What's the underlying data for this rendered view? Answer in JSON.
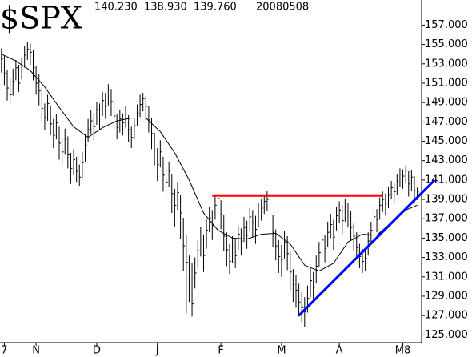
{
  "chart_data": {
    "type": "ohlc",
    "header": {
      "symbol": "$SPX",
      "high": "140.230",
      "low": "138.930",
      "close": "139.760",
      "date": "20080508"
    },
    "color": "#000000",
    "xlim": [
      -0.5,
      145.5
    ],
    "xticks": [
      {
        "value": 1,
        "label": "7"
      },
      {
        "value": 12,
        "label": "N"
      },
      {
        "value": 33,
        "label": "D"
      },
      {
        "value": 54,
        "label": "J"
      },
      {
        "value": 76,
        "label": "F"
      },
      {
        "value": 97,
        "label": "M"
      },
      {
        "value": 117,
        "label": "A"
      },
      {
        "value": 139,
        "label": "M8"
      }
    ],
    "ylim": [
      124.2,
      159.6
    ],
    "yticks": [
      {
        "value": 125,
        "label": "125.000"
      },
      {
        "value": 127,
        "label": "127.000"
      },
      {
        "value": 129,
        "label": "129.000"
      },
      {
        "value": 131,
        "label": "131.000"
      },
      {
        "value": 133,
        "label": "133.000"
      },
      {
        "value": 135,
        "label": "135.000"
      },
      {
        "value": 137,
        "label": "137.000"
      },
      {
        "value": 139,
        "label": "139.000"
      },
      {
        "value": 141,
        "label": "141.000"
      },
      {
        "value": 143,
        "label": "143.000"
      },
      {
        "value": 145,
        "label": "145.000"
      },
      {
        "value": 147,
        "label": "147.000"
      },
      {
        "value": 149,
        "label": "149.000"
      },
      {
        "value": 151,
        "label": "151.000"
      },
      {
        "value": 153,
        "label": "153.000"
      },
      {
        "value": 155,
        "label": "155.000"
      },
      {
        "value": 157,
        "label": "157.000"
      }
    ],
    "high": [
      154.6,
      153.8,
      152.4,
      151.6,
      152.5,
      153.4,
      152.9,
      153.6,
      154.8,
      155.3,
      155.1,
      154.4,
      152.8,
      151.9,
      150.6,
      148.9,
      149.8,
      148.7,
      147.3,
      147.8,
      146.5,
      145.4,
      146.3,
      145.5,
      143.8,
      144.2,
      143.4,
      142.6,
      143.9,
      145.8,
      147.3,
      148.2,
      147.9,
      149.1,
      148.9,
      150.1,
      150.0,
      150.9,
      150.4,
      149.2,
      147.8,
      148.2,
      147.9,
      148.6,
      147.7,
      146.5,
      147.4,
      148.8,
      149.8,
      150.0,
      149.7,
      148.6,
      147.4,
      145.9,
      144.3,
      145.1,
      143.4,
      142.3,
      142.9,
      141.6,
      140.1,
      140.8,
      139.5,
      137.1,
      135.3,
      133.2,
      132.4,
      133.0,
      134.8,
      136.2,
      135.4,
      137.0,
      138.2,
      137.9,
      139.3,
      139.6,
      138.9,
      137.4,
      135.6,
      134.4,
      135.2,
      134.9,
      136.3,
      136.0,
      137.2,
      136.8,
      138.1,
      137.9,
      137.3,
      138.6,
      139.0,
      139.5,
      139.9,
      139.2,
      137.4,
      135.9,
      134.8,
      134.3,
      135.7,
      135.2,
      133.6,
      131.8,
      131.2,
      130.3,
      129.4,
      128.9,
      130.1,
      131.9,
      131.5,
      133.2,
      134.6,
      135.9,
      135.3,
      136.7,
      137.5,
      136.9,
      138.2,
      138.8,
      138.4,
      139.0,
      138.6,
      137.8,
      136.5,
      135.6,
      134.4,
      133.9,
      134.0,
      135.6,
      136.7,
      138.1,
      138.0,
      139.2,
      139.8,
      139.6,
      140.3,
      140.9,
      140.7,
      141.6,
      142.2,
      142.1,
      142.5,
      141.9,
      142.0,
      141.4,
      140.23
    ],
    "low": [
      152.1,
      150.8,
      149.2,
      148.9,
      149.7,
      151.3,
      150.1,
      151.4,
      152.6,
      153.4,
      152.9,
      151.3,
      149.8,
      148.7,
      147.1,
      146.2,
      147.1,
      145.6,
      144.3,
      145.2,
      143.1,
      142.5,
      143.6,
      142.2,
      140.6,
      141.5,
      140.8,
      140.4,
      141.2,
      142.9,
      144.9,
      145.8,
      145.1,
      146.7,
      146.2,
      147.6,
      147.3,
      148.7,
      147.6,
      146.1,
      145.2,
      145.9,
      145.6,
      146.4,
      144.9,
      144.3,
      145.2,
      146.6,
      147.5,
      148.1,
      147.2,
      145.9,
      144.2,
      142.5,
      140.9,
      142.3,
      139.8,
      139.2,
      140.3,
      137.6,
      136.2,
      137.9,
      134.9,
      131.6,
      127.2,
      128.4,
      126.9,
      129.8,
      131.9,
      133.1,
      131.5,
      133.9,
      135.6,
      134.8,
      136.9,
      137.6,
      135.9,
      133.7,
      132.1,
      131.3,
      132.4,
      131.9,
      133.8,
      133.2,
      134.6,
      133.9,
      135.7,
      135.1,
      134.4,
      136.2,
      136.8,
      137.5,
      137.8,
      135.9,
      134.1,
      132.7,
      131.4,
      131.0,
      132.9,
      131.7,
      129.6,
      128.4,
      127.8,
      126.9,
      126.2,
      125.8,
      127.3,
      128.9,
      128.4,
      130.3,
      132.0,
      133.2,
      132.5,
      134.1,
      135.0,
      133.8,
      135.8,
      136.6,
      135.4,
      136.7,
      136.1,
      134.8,
      133.7,
      132.8,
      131.9,
      131.4,
      131.6,
      133.2,
      134.4,
      135.8,
      135.6,
      136.9,
      137.7,
      137.4,
      138.1,
      139.0,
      138.6,
      139.5,
      140.3,
      140.1,
      140.7,
      139.3,
      139.9,
      138.6,
      138.93
    ],
    "close": [
      153.5,
      152.0,
      150.5,
      149.8,
      151.2,
      152.6,
      151.0,
      152.8,
      153.9,
      154.5,
      154.2,
      152.6,
      151.0,
      150.2,
      148.4,
      147.5,
      148.9,
      146.8,
      145.6,
      146.9,
      144.8,
      143.9,
      145.2,
      143.6,
      142.2,
      143.1,
      141.9,
      141.3,
      142.8,
      144.6,
      146.2,
      147.1,
      146.5,
      148.3,
      147.4,
      149.2,
      148.6,
      150.3,
      149.1,
      147.6,
      146.4,
      147.3,
      146.9,
      147.8,
      146.2,
      145.4,
      146.6,
      147.9,
      148.8,
      149.4,
      148.6,
      147.2,
      145.8,
      144.1,
      142.6,
      143.9,
      141.5,
      140.8,
      141.9,
      139.6,
      138.4,
      139.7,
      137.6,
      134.2,
      132.5,
      130.8,
      128.2,
      131.4,
      133.7,
      134.9,
      133.2,
      135.8,
      137.1,
      136.3,
      138.4,
      139.1,
      137.5,
      135.2,
      133.8,
      132.6,
      134.1,
      133.2,
      135.4,
      134.7,
      136.1,
      135.3,
      137.2,
      136.6,
      135.9,
      137.8,
      138.1,
      138.8,
      139.0,
      137.4,
      135.6,
      134.2,
      133.1,
      132.8,
      134.6,
      133.4,
      131.5,
      130.2,
      129.6,
      128.4,
      127.8,
      127.4,
      128.8,
      130.6,
      129.9,
      132.1,
      133.5,
      134.8,
      133.9,
      135.6,
      136.4,
      135.1,
      137.3,
      137.9,
      136.8,
      138.2,
      137.4,
      136.1,
      135.2,
      134.0,
      133.1,
      132.6,
      132.9,
      134.7,
      135.8,
      137.2,
      136.9,
      138.4,
      139.0,
      138.6,
      139.5,
      140.2,
      139.8,
      140.9,
      141.6,
      141.4,
      142.0,
      140.6,
      141.3,
      139.9,
      139.76
    ],
    "moving_average": {
      "color": "#000000",
      "x": [
        0,
        5,
        10,
        15,
        20,
        25,
        30,
        35,
        40,
        45,
        50,
        55,
        60,
        65,
        70,
        75,
        80,
        85,
        90,
        95,
        100,
        105,
        110,
        115,
        120,
        125,
        130,
        135,
        140,
        144
      ],
      "values": [
        154.0,
        153.3,
        152.3,
        150.6,
        148.5,
        146.5,
        145.4,
        146.4,
        147.1,
        147.4,
        147.4,
        146.0,
        143.8,
        141.0,
        137.6,
        135.8,
        135.0,
        134.9,
        135.4,
        135.5,
        134.4,
        132.2,
        131.6,
        132.4,
        134.6,
        135.4,
        135.3,
        136.6,
        137.9,
        138.4
      ]
    },
    "lines": [
      {
        "color": "#ff0000",
        "x": [
          73,
          132
        ],
        "values": [
          139.4,
          139.4
        ]
      },
      {
        "color": "#0000ff",
        "x": [
          103,
          150
        ],
        "values": [
          127.0,
          141.0
        ]
      }
    ]
  }
}
